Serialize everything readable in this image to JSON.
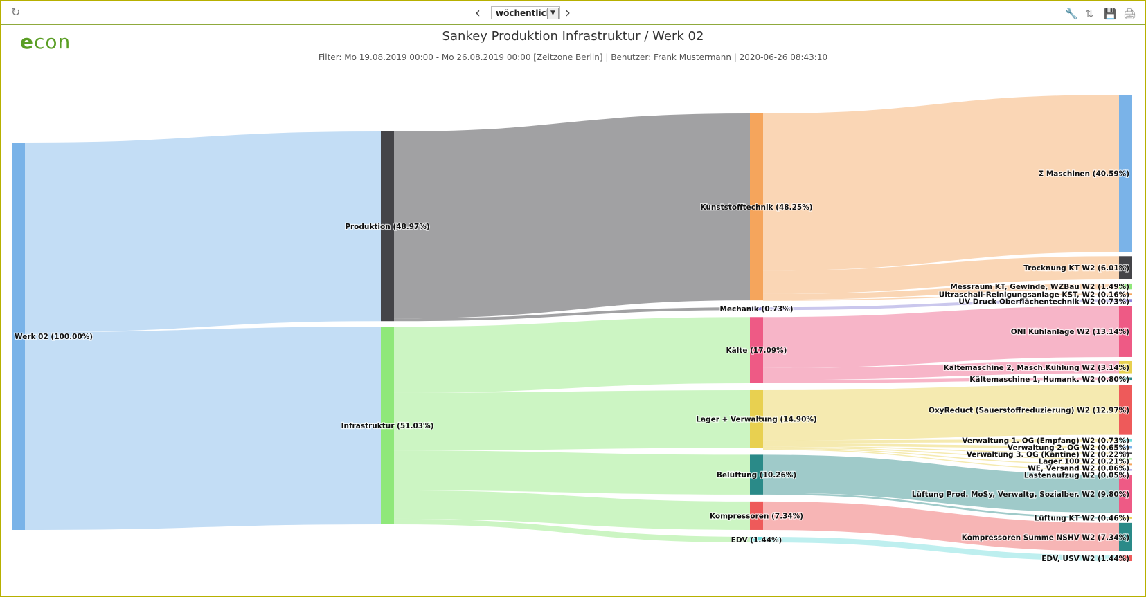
{
  "toolbar": {
    "period_value": "wöchentlich",
    "refresh_icon": "refresh-icon",
    "prev_icon": "chevron-left-icon",
    "next_icon": "chevron-right-icon",
    "tools_icons": [
      "wrench-icon",
      "sort-icon",
      "save-icon",
      "print-icon"
    ]
  },
  "logo": {
    "e": "e",
    "rest": "con"
  },
  "title": "Sankey Produktion Infrastruktur / Werk 02",
  "filter": "Filter: Mo 19.08.2019 00:00 - Mo 26.08.2019 00:00 [Zeitzone Berlin] | Benutzer: Frank Mustermann | 2020-06-26 08:43:10",
  "chart_data": {
    "type": "sankey",
    "nodes": [
      {
        "id": "werk",
        "label": "Werk 02 (100.00%)",
        "value": 100.0,
        "col": 0,
        "color": "#7ab3e8"
      },
      {
        "id": "prod",
        "label": "Produktion (48.97%)",
        "value": 48.97,
        "col": 1,
        "color": "#444448"
      },
      {
        "id": "infra",
        "label": "Infrastruktur (51.03%)",
        "value": 51.03,
        "col": 1,
        "color": "#8fe87a"
      },
      {
        "id": "kunst",
        "label": "Kunststofftechnik (48.25%)",
        "value": 48.25,
        "col": 2,
        "color": "#f5a55c"
      },
      {
        "id": "mech",
        "label": "Mechanik (0.73%)",
        "value": 0.73,
        "col": 2,
        "color": "#8a82d8"
      },
      {
        "id": "kaelte",
        "label": "Kälte (17.09%)",
        "value": 17.09,
        "col": 2,
        "color": "#ee5a85"
      },
      {
        "id": "lager",
        "label": "Lager + Verwaltung (14.90%)",
        "value": 14.9,
        "col": 2,
        "color": "#e8d050"
      },
      {
        "id": "belueft",
        "label": "Belüftung (10.26%)",
        "value": 10.26,
        "col": 2,
        "color": "#2a8a88"
      },
      {
        "id": "kompr",
        "label": "Kompressoren (7.34%)",
        "value": 7.34,
        "col": 2,
        "color": "#ee5a5a"
      },
      {
        "id": "edv",
        "label": "EDV (1.44%)",
        "value": 1.44,
        "col": 2,
        "color": "#6edcdc"
      },
      {
        "id": "masch",
        "label": "Σ Maschinen (40.59%)",
        "value": 40.59,
        "col": 3,
        "color": "#7ab3e8"
      },
      {
        "id": "trock",
        "label": "Trocknung KT W2 (6.01%)",
        "value": 6.01,
        "col": 3,
        "color": "#444448"
      },
      {
        "id": "mess",
        "label": "Messraum KT, Gewinde, WZBau W2 (1.49%)",
        "value": 1.49,
        "col": 3,
        "color": "#8fe87a"
      },
      {
        "id": "ultra",
        "label": "Ultraschall-Reinigungsanlage KST, W2 (0.16%)",
        "value": 0.16,
        "col": 3,
        "color": "#f5a55c"
      },
      {
        "id": "uv",
        "label": "UV Druck Oberflächentechnik W2 (0.73%)",
        "value": 0.73,
        "col": 3,
        "color": "#8a82d8"
      },
      {
        "id": "oni",
        "label": "ONI Kühlanlage W2 (13.14%)",
        "value": 13.14,
        "col": 3,
        "color": "#ee5a85"
      },
      {
        "id": "km2",
        "label": "Kältemaschine 2, Masch.Kühlung W2 (3.14%)",
        "value": 3.14,
        "col": 3,
        "color": "#e8d050"
      },
      {
        "id": "km1",
        "label": "Kältemaschine 1, Humank. W2 (0.80%)",
        "value": 0.8,
        "col": 3,
        "color": "#2a8a88"
      },
      {
        "id": "oxy",
        "label": "OxyReduct (Sauerstoffreduzierung) W2 (12.97%)",
        "value": 12.97,
        "col": 3,
        "color": "#ee5a5a"
      },
      {
        "id": "v1",
        "label": "Verwaltung 1. OG (Empfang) W2 (0.73%)",
        "value": 0.73,
        "col": 3,
        "color": "#6edcdc"
      },
      {
        "id": "v2",
        "label": "Verwaltung 2. OG W2 (0.65%)",
        "value": 0.65,
        "col": 3,
        "color": "#7ab3e8"
      },
      {
        "id": "v3",
        "label": "Verwaltung 3. OG (Kantine) W2 (0.22%)",
        "value": 0.22,
        "col": 3,
        "color": "#444448"
      },
      {
        "id": "l100",
        "label": "Lager 100 W2 (0.21%)",
        "value": 0.21,
        "col": 3,
        "color": "#8fe87a"
      },
      {
        "id": "we",
        "label": "WE, Versand W2 (0.06%)",
        "value": 0.06,
        "col": 3,
        "color": "#f5a55c"
      },
      {
        "id": "lasten",
        "label": "Lastenaufzug W2 (0.05%)",
        "value": 0.05,
        "col": 3,
        "color": "#8a82d8"
      },
      {
        "id": "lprod",
        "label": "Lüftung Prod. MoSy, Verwaltg, Sozialber. W2 (9.80%)",
        "value": 9.8,
        "col": 3,
        "color": "#ee5a85"
      },
      {
        "id": "lkt",
        "label": "Lüftung KT W2 (0.46%)",
        "value": 0.46,
        "col": 3,
        "color": "#e8d050"
      },
      {
        "id": "ksum",
        "label": "Kompressoren Summe NSHV W2 (7.34%)",
        "value": 7.34,
        "col": 3,
        "color": "#2a8a88"
      },
      {
        "id": "usv",
        "label": "EDV, USV W2 (1.44%)",
        "value": 1.44,
        "col": 3,
        "color": "#ee5a5a"
      }
    ],
    "links": [
      {
        "s": "werk",
        "t": "prod",
        "v": 48.97
      },
      {
        "s": "werk",
        "t": "infra",
        "v": 51.03
      },
      {
        "s": "prod",
        "t": "kunst",
        "v": 48.25
      },
      {
        "s": "prod",
        "t": "mech",
        "v": 0.73
      },
      {
        "s": "infra",
        "t": "kaelte",
        "v": 17.09
      },
      {
        "s": "infra",
        "t": "lager",
        "v": 14.9
      },
      {
        "s": "infra",
        "t": "belueft",
        "v": 10.26
      },
      {
        "s": "infra",
        "t": "kompr",
        "v": 7.34
      },
      {
        "s": "infra",
        "t": "edv",
        "v": 1.44
      },
      {
        "s": "kunst",
        "t": "masch",
        "v": 40.59
      },
      {
        "s": "kunst",
        "t": "trock",
        "v": 6.01
      },
      {
        "s": "kunst",
        "t": "mess",
        "v": 1.49
      },
      {
        "s": "kunst",
        "t": "ultra",
        "v": 0.16
      },
      {
        "s": "mech",
        "t": "uv",
        "v": 0.73
      },
      {
        "s": "kaelte",
        "t": "oni",
        "v": 13.14
      },
      {
        "s": "kaelte",
        "t": "km2",
        "v": 3.14
      },
      {
        "s": "kaelte",
        "t": "km1",
        "v": 0.8
      },
      {
        "s": "lager",
        "t": "oxy",
        "v": 12.97
      },
      {
        "s": "lager",
        "t": "v1",
        "v": 0.73
      },
      {
        "s": "lager",
        "t": "v2",
        "v": 0.65
      },
      {
        "s": "lager",
        "t": "v3",
        "v": 0.22
      },
      {
        "s": "lager",
        "t": "l100",
        "v": 0.21
      },
      {
        "s": "lager",
        "t": "we",
        "v": 0.06
      },
      {
        "s": "lager",
        "t": "lasten",
        "v": 0.05
      },
      {
        "s": "belueft",
        "t": "lprod",
        "v": 9.8
      },
      {
        "s": "belueft",
        "t": "lkt",
        "v": 0.46
      },
      {
        "s": "kompr",
        "t": "ksum",
        "v": 7.34
      },
      {
        "s": "edv",
        "t": "usv",
        "v": 1.44
      }
    ]
  }
}
